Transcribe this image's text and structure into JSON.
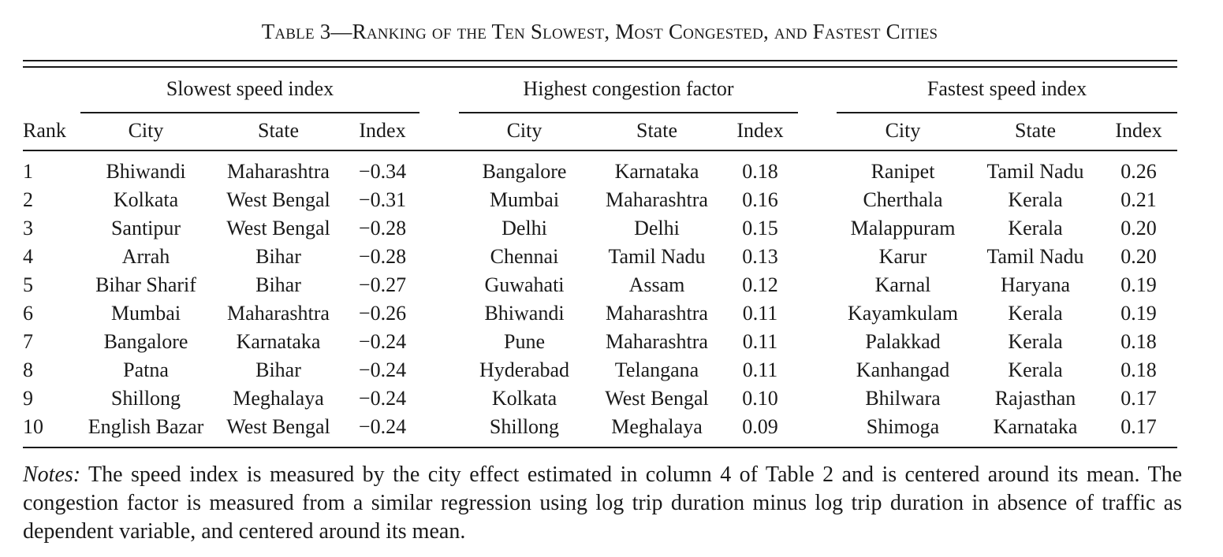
{
  "title": "Table 3—Ranking of the Ten Slowest, Most Congested, and Fastest Cities",
  "groups": {
    "slowest": "Slowest speed index",
    "congestion": "Highest congestion factor",
    "fastest": "Fastest speed index"
  },
  "columns": {
    "rank": "Rank",
    "city": "City",
    "state": "State",
    "index": "Index"
  },
  "rows": [
    {
      "rank": "1",
      "s_city": "Bhiwandi",
      "s_state": "Maharashtra",
      "s_index": "−0.34",
      "c_city": "Bangalore",
      "c_state": "Karnataka",
      "c_index": "0.18",
      "f_city": "Ranipet",
      "f_state": "Tamil Nadu",
      "f_index": "0.26"
    },
    {
      "rank": "2",
      "s_city": "Kolkata",
      "s_state": "West Bengal",
      "s_index": "−0.31",
      "c_city": "Mumbai",
      "c_state": "Maharashtra",
      "c_index": "0.16",
      "f_city": "Cherthala",
      "f_state": "Kerala",
      "f_index": "0.21"
    },
    {
      "rank": "3",
      "s_city": "Santipur",
      "s_state": "West Bengal",
      "s_index": "−0.28",
      "c_city": "Delhi",
      "c_state": "Delhi",
      "c_index": "0.15",
      "f_city": "Malappuram",
      "f_state": "Kerala",
      "f_index": "0.20"
    },
    {
      "rank": "4",
      "s_city": "Arrah",
      "s_state": "Bihar",
      "s_index": "−0.28",
      "c_city": "Chennai",
      "c_state": "Tamil Nadu",
      "c_index": "0.13",
      "f_city": "Karur",
      "f_state": "Tamil Nadu",
      "f_index": "0.20"
    },
    {
      "rank": "5",
      "s_city": "Bihar Sharif",
      "s_state": "Bihar",
      "s_index": "−0.27",
      "c_city": "Guwahati",
      "c_state": "Assam",
      "c_index": "0.12",
      "f_city": "Karnal",
      "f_state": "Haryana",
      "f_index": "0.19"
    },
    {
      "rank": "6",
      "s_city": "Mumbai",
      "s_state": "Maharashtra",
      "s_index": "−0.26",
      "c_city": "Bhiwandi",
      "c_state": "Maharashtra",
      "c_index": "0.11",
      "f_city": "Kayamkulam",
      "f_state": "Kerala",
      "f_index": "0.19"
    },
    {
      "rank": "7",
      "s_city": "Bangalore",
      "s_state": "Karnataka",
      "s_index": "−0.24",
      "c_city": "Pune",
      "c_state": "Maharashtra",
      "c_index": "0.11",
      "f_city": "Palakkad",
      "f_state": "Kerala",
      "f_index": "0.18"
    },
    {
      "rank": "8",
      "s_city": "Patna",
      "s_state": "Bihar",
      "s_index": "−0.24",
      "c_city": "Hyderabad",
      "c_state": "Telangana",
      "c_index": "0.11",
      "f_city": "Kanhangad",
      "f_state": "Kerala",
      "f_index": "0.18"
    },
    {
      "rank": "9",
      "s_city": "Shillong",
      "s_state": "Meghalaya",
      "s_index": "−0.24",
      "c_city": "Kolkata",
      "c_state": "West Bengal",
      "c_index": "0.10",
      "f_city": "Bhilwara",
      "f_state": "Rajasthan",
      "f_index": "0.17"
    },
    {
      "rank": "10",
      "s_city": "English Bazar",
      "s_state": "West Bengal",
      "s_index": "−0.24",
      "c_city": "Shillong",
      "c_state": "Meghalaya",
      "c_index": "0.09",
      "f_city": "Shimoga",
      "f_state": "Karnataka",
      "f_index": "0.17"
    }
  ],
  "notes": {
    "lead": "Notes:",
    "text": " The speed index is measured by the city effect estimated in column 4 of Table 2 and is centered around its mean. The congestion factor is measured from a similar regression using log trip duration minus log trip duration in absence of traffic as dependent variable, and centered around its mean."
  }
}
